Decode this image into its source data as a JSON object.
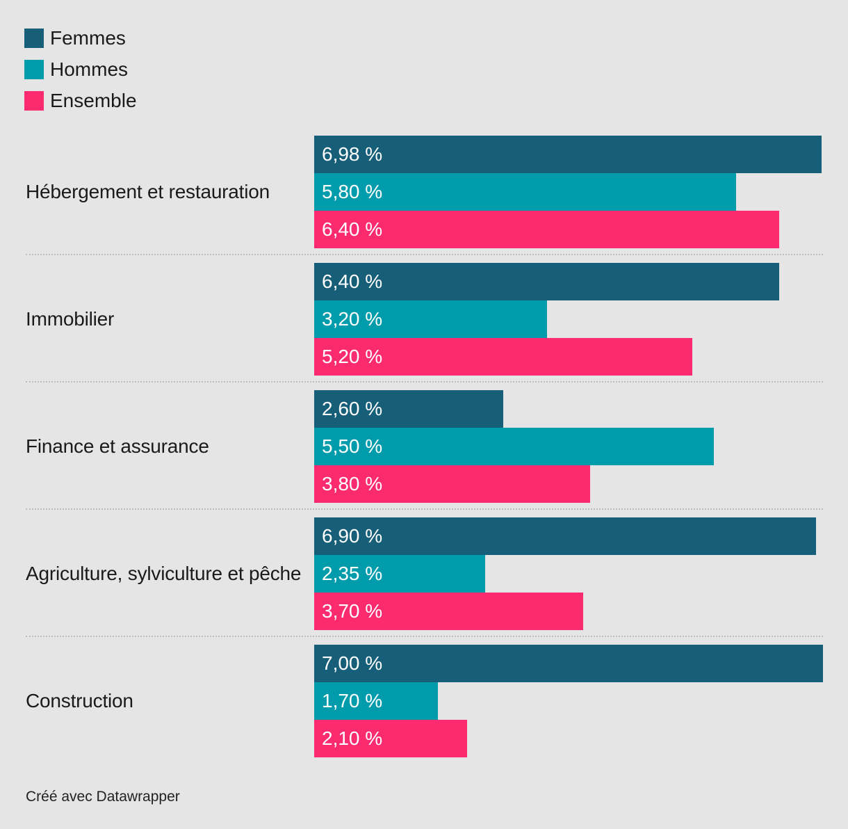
{
  "colors": {
    "background": "#e5e5e5",
    "text": "#1a1a1a",
    "bar_label_text": "#ffffff",
    "separator": "#bcbcbc",
    "femmes": "#175F78",
    "hommes": "#009CAB",
    "ensemble": "#FC2A6F"
  },
  "chart_data": {
    "type": "bar",
    "orientation": "horizontal",
    "grid": false,
    "legend_position": "top-left",
    "xlim": [
      0,
      7.0
    ],
    "unit": "%",
    "series": [
      {
        "name": "Femmes",
        "color": "#175F78"
      },
      {
        "name": "Hommes",
        "color": "#009CAB"
      },
      {
        "name": "Ensemble",
        "color": "#FC2A6F"
      }
    ],
    "categories": [
      "Hébergement et restauration",
      "Immobilier",
      "Finance et assurance",
      "Agriculture, sylviculture et pêche",
      "Construction"
    ],
    "groups": [
      {
        "category": "Hébergement et restauration",
        "values": [
          6.98,
          5.8,
          6.4
        ],
        "display": [
          "6,98 %",
          "5,80 %",
          "6,40 %"
        ]
      },
      {
        "category": "Immobilier",
        "values": [
          6.4,
          3.2,
          5.2
        ],
        "display": [
          "6,40 %",
          "3,20 %",
          "5,20 %"
        ]
      },
      {
        "category": "Finance et assurance",
        "values": [
          2.6,
          5.5,
          3.8
        ],
        "display": [
          "2,60 %",
          "5,50 %",
          "3,80 %"
        ]
      },
      {
        "category": "Agriculture, sylviculture et pêche",
        "values": [
          6.9,
          2.35,
          3.7
        ],
        "display": [
          "6,90 %",
          "2,35 %",
          "3,70 %"
        ]
      },
      {
        "category": "Construction",
        "values": [
          7.0,
          1.7,
          2.1
        ],
        "display": [
          "7,00 %",
          "1,70 %",
          "2,10 %"
        ]
      }
    ]
  },
  "footer": {
    "attribution": "Créé avec Datawrapper"
  }
}
